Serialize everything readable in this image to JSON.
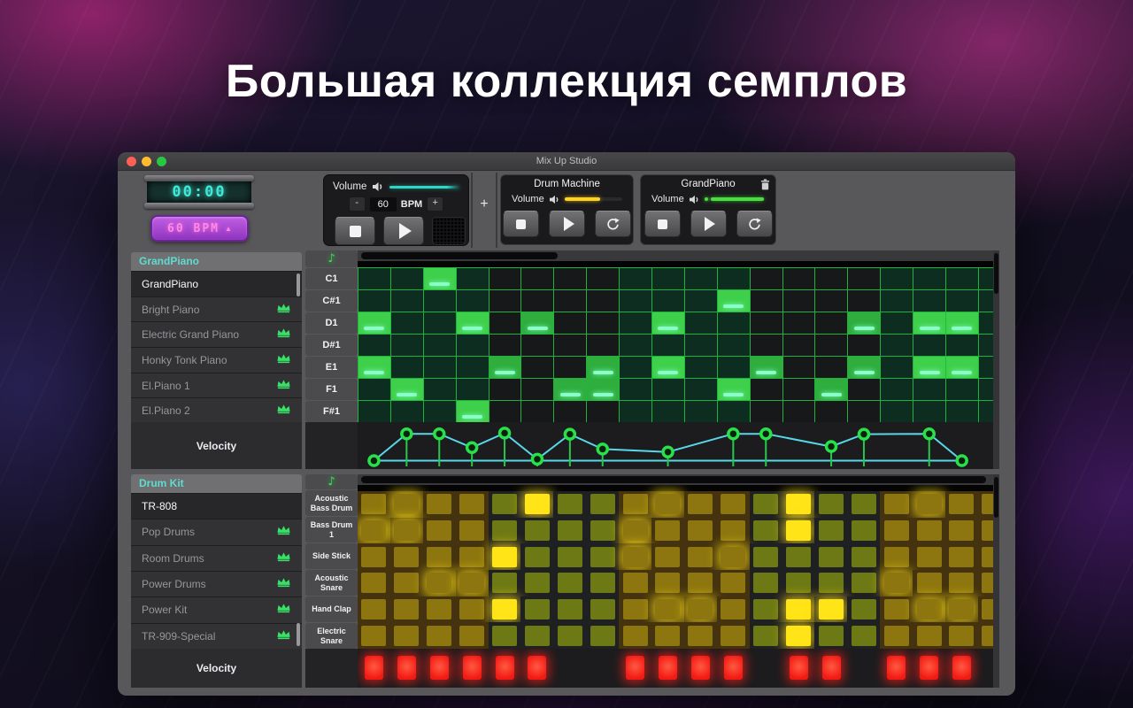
{
  "page": {
    "headline": "Большая коллекция семплов"
  },
  "window": {
    "title": "Mix Up Studio",
    "transport": {
      "time": "00:00",
      "bpm_button_label": "60 BPM",
      "volume_label": "Volume",
      "bpm_minus": "-",
      "bpm_value": "60",
      "bpm_unit": "BPM",
      "bpm_plus": "+",
      "add_track_label": "+"
    },
    "tracks": [
      {
        "name": "Drum Machine",
        "volume_label": "Volume",
        "slider_color": "#ffd21e",
        "slider_fill": 0.62,
        "has_trash": false,
        "has_dot": false
      },
      {
        "name": "GrandPiano",
        "volume_label": "Volume",
        "slider_color": "#46e03c",
        "slider_fill": 0.95,
        "has_trash": true,
        "has_dot": true
      }
    ]
  },
  "piano": {
    "library_title": "GrandPiano",
    "items": [
      {
        "label": "GrandPiano",
        "selected": true,
        "crown": false
      },
      {
        "label": "Bright Piano",
        "selected": false,
        "crown": true
      },
      {
        "label": "Electric Grand Piano",
        "selected": false,
        "crown": true
      },
      {
        "label": "Honky Tonk Piano",
        "selected": false,
        "crown": true
      },
      {
        "label": "El.Piano 1",
        "selected": false,
        "crown": true
      },
      {
        "label": "El.Piano 2",
        "selected": false,
        "crown": true
      }
    ],
    "note_rows": [
      "C1",
      "C#1",
      "D1",
      "D#1",
      "E1",
      "F1",
      "F#1"
    ],
    "columns": 20,
    "notes": [
      [
        3
      ],
      [
        12
      ],
      [
        1,
        4,
        6,
        10,
        16,
        18,
        19
      ],
      [],
      [
        1,
        5,
        8,
        10,
        13,
        16,
        18,
        19
      ],
      [
        2,
        7,
        8,
        12,
        15
      ],
      [
        4
      ]
    ],
    "velocity_label": "Velocity",
    "velocity_points": [
      {
        "col": 1,
        "v": 0.06
      },
      {
        "col": 2,
        "v": 0.8
      },
      {
        "col": 3,
        "v": 0.8
      },
      {
        "col": 4,
        "v": 0.42
      },
      {
        "col": 5,
        "v": 0.82
      },
      {
        "col": 6,
        "v": 0.1
      },
      {
        "col": 7,
        "v": 0.79
      },
      {
        "col": 8,
        "v": 0.38
      },
      {
        "col": 10,
        "v": 0.3
      },
      {
        "col": 12,
        "v": 0.8
      },
      {
        "col": 13,
        "v": 0.8
      },
      {
        "col": 15,
        "v": 0.45
      },
      {
        "col": 16,
        "v": 0.79
      },
      {
        "col": 18,
        "v": 0.8
      },
      {
        "col": 19,
        "v": 0.06
      }
    ]
  },
  "drums": {
    "library_title": "Drum Kit",
    "items": [
      {
        "label": "TR-808",
        "selected": true,
        "crown": false
      },
      {
        "label": "Pop Drums",
        "selected": false,
        "crown": true
      },
      {
        "label": "Room Drums",
        "selected": false,
        "crown": true
      },
      {
        "label": "Power Drums",
        "selected": false,
        "crown": true
      },
      {
        "label": "Power Kit",
        "selected": false,
        "crown": true
      },
      {
        "label": "TR-909-Special",
        "selected": false,
        "crown": true
      }
    ],
    "rows": [
      "Acoustic Bass Drum",
      "Bass Drum 1",
      "Side Stick",
      "Acoustic Snare",
      "Hand Clap",
      "Electric Snare"
    ],
    "columns": 20,
    "hits": [
      [
        2,
        6,
        10,
        14,
        18
      ],
      [
        1,
        2,
        9,
        14
      ],
      [
        5,
        9,
        12
      ],
      [
        3,
        4,
        17
      ],
      [
        5,
        10,
        11,
        14,
        15,
        18,
        19
      ],
      [
        14
      ]
    ],
    "velocity_label": "Velocity",
    "velocity_cols": [
      1,
      2,
      3,
      4,
      5,
      6,
      9,
      10,
      11,
      12,
      14,
      15,
      17,
      18,
      19
    ]
  },
  "colors": {
    "accent_cyan": "#2bd8c8",
    "accent_purple": "#a64fd0",
    "note_green": "#3fd04b",
    "pad_yellow": "#ffe417",
    "velocity_red": "#f21a14",
    "crown_green": "#38e066",
    "traffic_red": "#ff5f57",
    "traffic_yellow": "#febc2e",
    "traffic_green": "#28c840"
  }
}
